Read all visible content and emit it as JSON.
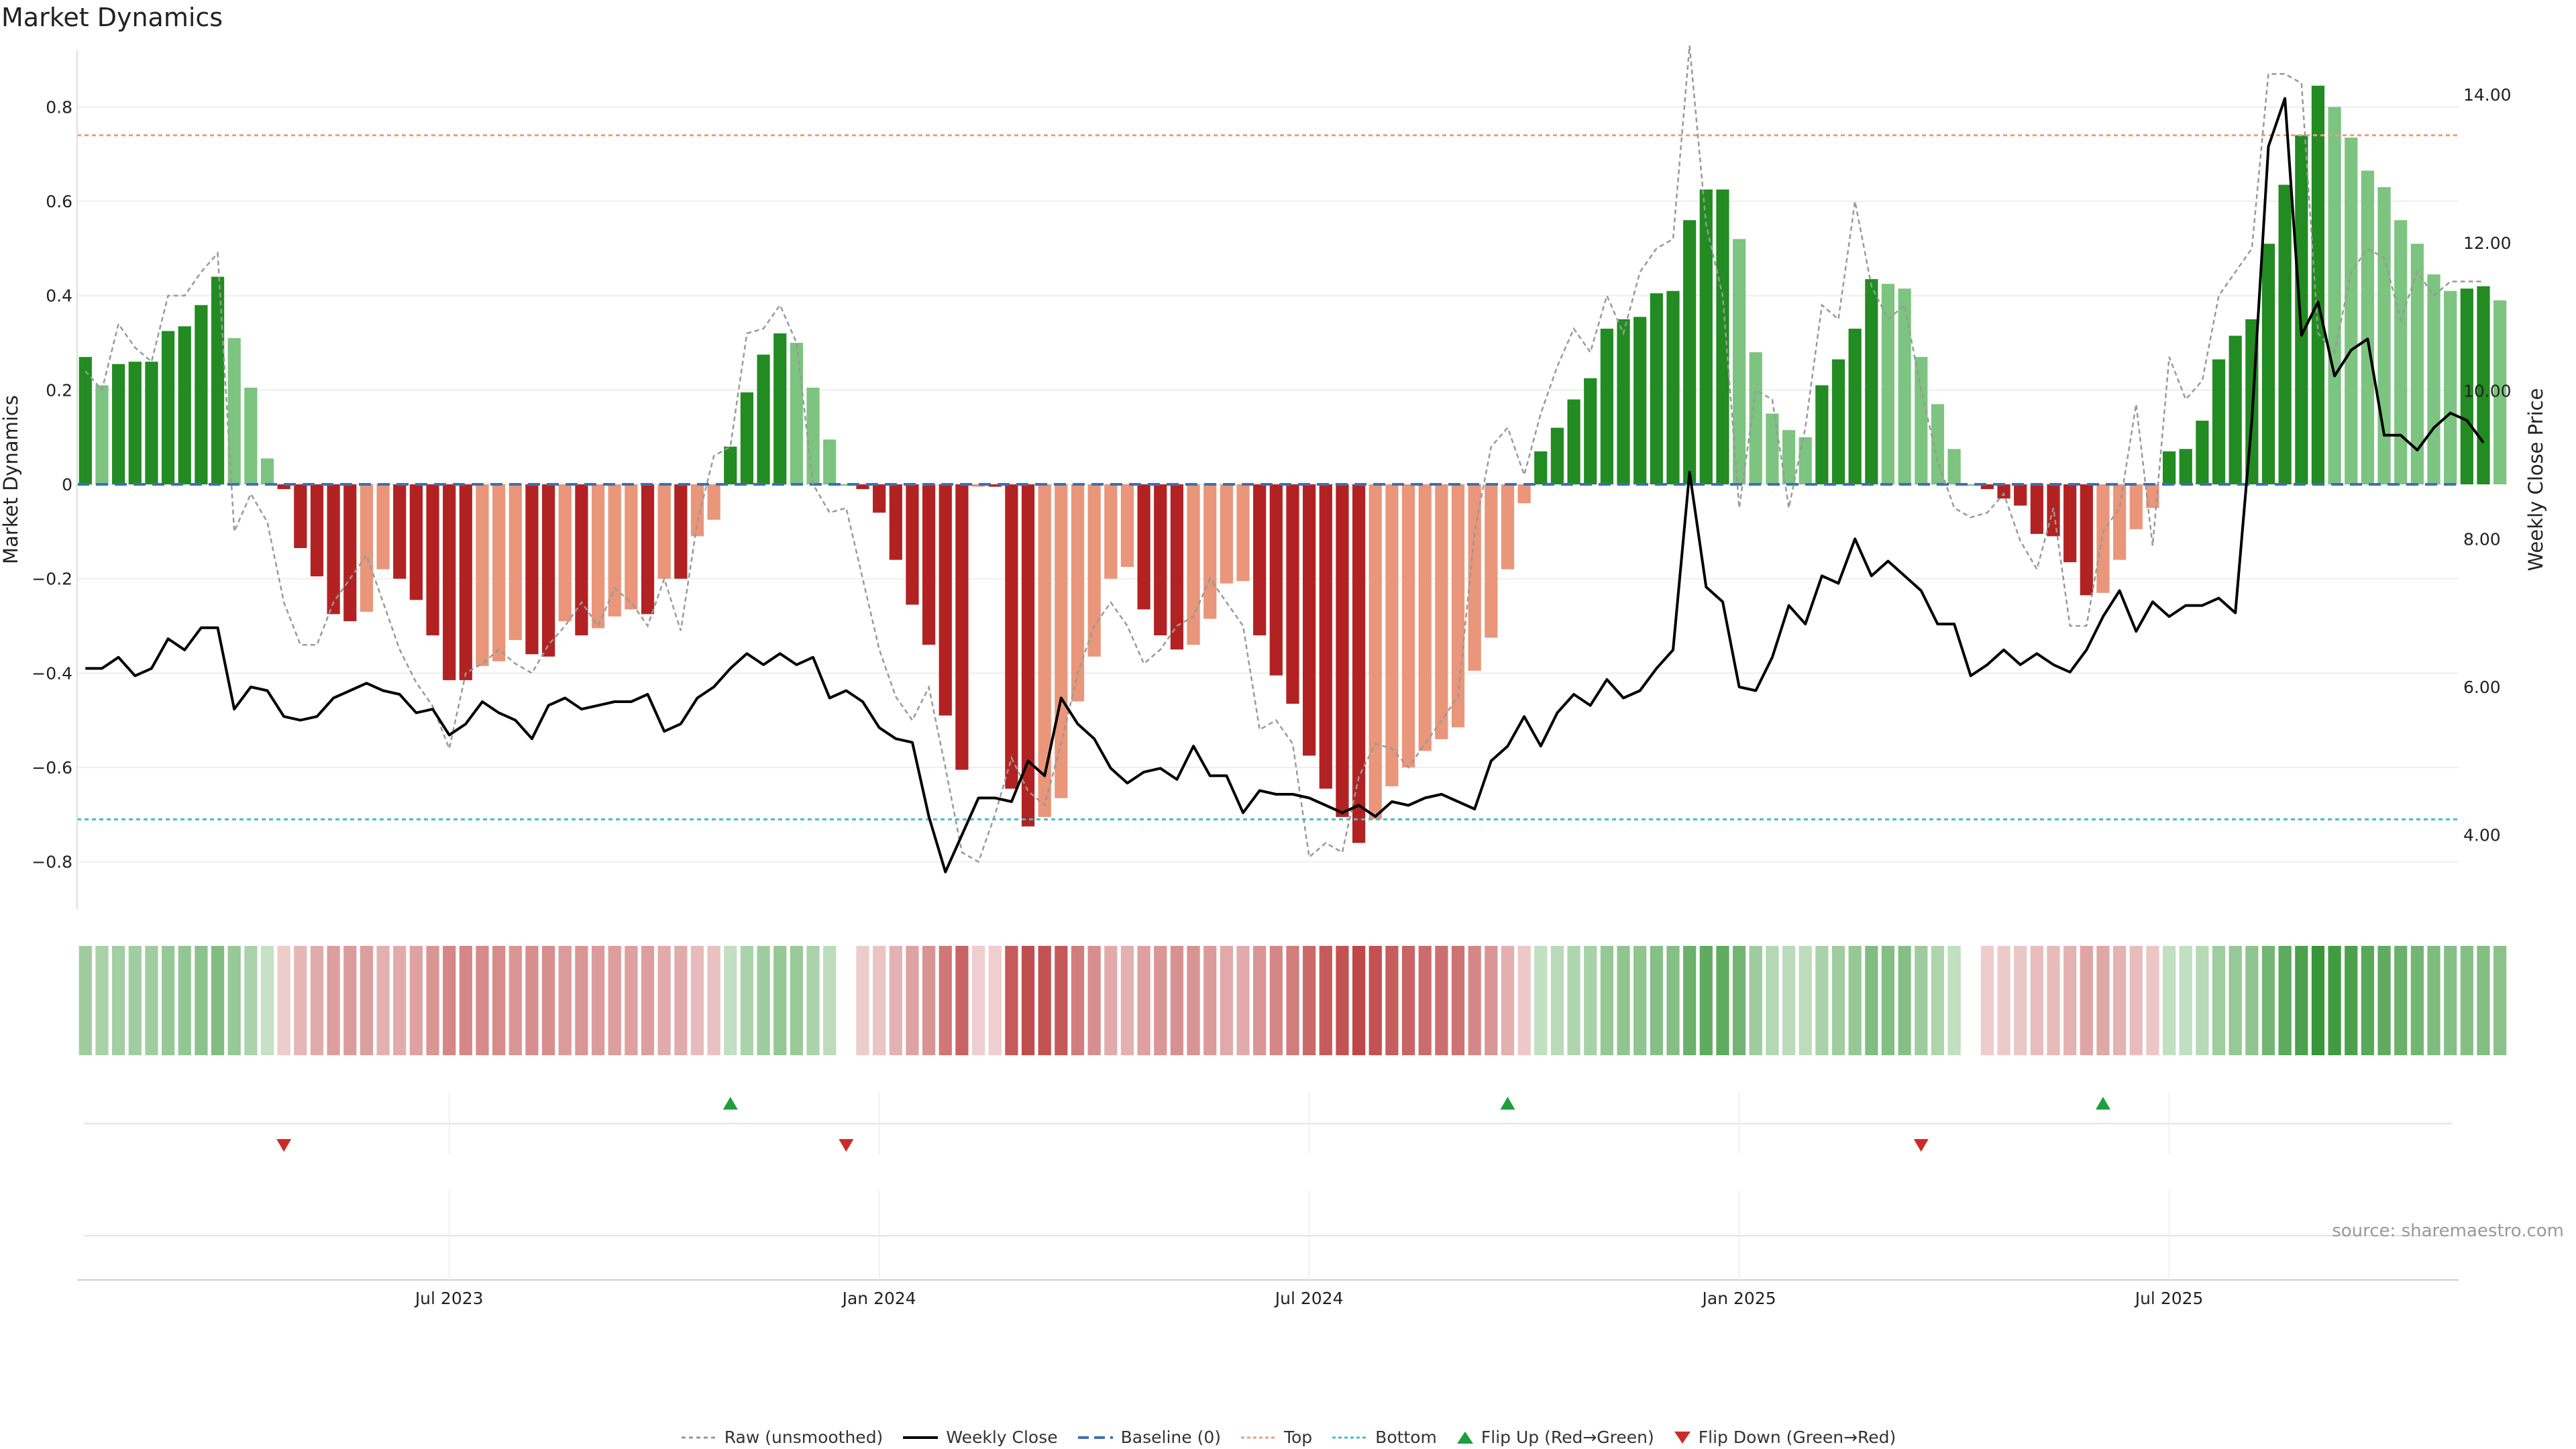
{
  "title": "Market Dynamics",
  "source": "source: sharemaestro.com",
  "colors": {
    "strong_green": "#228b22",
    "weak_green": "#7cc47f",
    "strong_red": "#b22222",
    "weak_red": "#e9967a",
    "price": "#000000",
    "raw": "#999999",
    "baseline": "#3d6fb4",
    "top": "#e7a07f",
    "bottom": "#3fbfc9",
    "flip_up": "#1e9e3e",
    "flip_down": "#cc2a2a"
  },
  "chart_data": {
    "type": "bar",
    "title": "Market Dynamics",
    "ylabel": "Market Dynamics",
    "y2label": "Weekly Close Price",
    "ylim": [
      -0.9,
      0.92
    ],
    "y2lim": [
      3.0,
      14.6
    ],
    "yticks": [
      -0.8,
      -0.6,
      -0.4,
      -0.2,
      0,
      0.2,
      0.4,
      0.6,
      0.8
    ],
    "yticklabels": [
      "−0.8",
      "−0.6",
      "−0.4",
      "−0.2",
      "0",
      "0.2",
      "0.4",
      "0.6",
      "0.8"
    ],
    "y2ticks": [
      4,
      6,
      8,
      10,
      12,
      14
    ],
    "y2ticklabels": [
      "4.00",
      "6.00",
      "8.00",
      "10.00",
      "12.00",
      "14.00"
    ],
    "xticks": [
      {
        "week": 22,
        "label": "Jul 2023"
      },
      {
        "week": 48,
        "label": "Jan 2024"
      },
      {
        "week": 74,
        "label": "Jul 2024"
      },
      {
        "week": 100,
        "label": "Jan 2025"
      },
      {
        "week": 126,
        "label": "Jul 2025"
      }
    ],
    "top_level": 0.74,
    "bottom_level": -0.71,
    "baseline": 0,
    "weeks": 144,
    "values": [
      0.27,
      0.21,
      0.255,
      0.26,
      0.26,
      0.325,
      0.335,
      0.38,
      0.44,
      0.31,
      0.205,
      0.055,
      -0.01,
      -0.135,
      -0.195,
      -0.275,
      -0.29,
      -0.27,
      -0.18,
      -0.2,
      -0.245,
      -0.32,
      -0.415,
      -0.415,
      -0.385,
      -0.375,
      -0.33,
      -0.36,
      -0.365,
      -0.29,
      -0.32,
      -0.305,
      -0.28,
      -0.265,
      -0.275,
      -0.2,
      -0.2,
      -0.11,
      -0.075,
      0.08,
      0.195,
      0.275,
      0.32,
      0.3,
      0.205,
      0.095,
      0,
      -0.01,
      -0.06,
      -0.16,
      -0.255,
      -0.34,
      -0.49,
      -0.605,
      -0.005,
      -0.005,
      -0.645,
      -0.725,
      -0.705,
      -0.665,
      -0.46,
      -0.365,
      -0.2,
      -0.175,
      -0.265,
      -0.32,
      -0.35,
      -0.34,
      -0.285,
      -0.21,
      -0.205,
      -0.32,
      -0.405,
      -0.465,
      -0.575,
      -0.645,
      -0.705,
      -0.76,
      -0.71,
      -0.64,
      -0.6,
      -0.565,
      -0.54,
      -0.515,
      -0.395,
      -0.325,
      -0.18,
      -0.04,
      0.07,
      0.12,
      0.18,
      0.225,
      0.33,
      0.35,
      0.355,
      0.405,
      0.41,
      0.56,
      0.625,
      0.625,
      0.52,
      0.28,
      0.15,
      0.115,
      0.1,
      0.21,
      0.265,
      0.33,
      0.435,
      0.425,
      0.415,
      0.27,
      0.17,
      0.075,
      0,
      -0.01,
      -0.03,
      -0.045,
      -0.105,
      -0.11,
      -0.165,
      -0.235,
      -0.23,
      -0.16,
      -0.095,
      -0.05,
      0.07,
      0.075,
      0.135,
      0.265,
      0.315,
      0.35,
      0.51,
      0.635,
      0.74,
      0.845,
      0.8,
      0.735,
      0.665,
      0.63,
      0.56,
      0.51,
      0.445,
      0.41,
      0.415,
      0.42,
      0.39
    ],
    "raw": [
      0.24,
      0.2,
      0.34,
      0.29,
      0.26,
      0.4,
      0.4,
      0.45,
      0.49,
      -0.1,
      -0.02,
      -0.08,
      -0.25,
      -0.34,
      -0.34,
      -0.25,
      -0.2,
      -0.15,
      -0.25,
      -0.35,
      -0.42,
      -0.47,
      -0.56,
      -0.4,
      -0.38,
      -0.35,
      -0.38,
      -0.4,
      -0.34,
      -0.3,
      -0.25,
      -0.3,
      -0.22,
      -0.25,
      -0.3,
      -0.2,
      -0.31,
      -0.08,
      0.06,
      0.08,
      0.32,
      0.33,
      0.38,
      0.3,
      0.0,
      -0.06,
      -0.05,
      -0.2,
      -0.35,
      -0.45,
      -0.5,
      -0.43,
      -0.6,
      -0.78,
      -0.8,
      -0.7,
      -0.58,
      -0.65,
      -0.68,
      -0.55,
      -0.4,
      -0.3,
      -0.25,
      -0.3,
      -0.38,
      -0.35,
      -0.3,
      -0.28,
      -0.2,
      -0.25,
      -0.3,
      -0.52,
      -0.5,
      -0.55,
      -0.79,
      -0.76,
      -0.78,
      -0.62,
      -0.55,
      -0.56,
      -0.6,
      -0.55,
      -0.5,
      -0.45,
      -0.1,
      0.08,
      0.12,
      0.02,
      0.15,
      0.25,
      0.33,
      0.28,
      0.4,
      0.32,
      0.45,
      0.5,
      0.52,
      0.93,
      0.55,
      0.4,
      -0.05,
      0.2,
      0.18,
      -0.05,
      0.12,
      0.38,
      0.35,
      0.6,
      0.42,
      0.35,
      0.38,
      0.2,
      0.05,
      -0.05,
      -0.07,
      -0.06,
      -0.02,
      -0.12,
      -0.18,
      -0.05,
      -0.3,
      -0.3,
      -0.1,
      -0.05,
      0.17,
      -0.13,
      0.27,
      0.18,
      0.22,
      0.4,
      0.45,
      0.5,
      0.87,
      0.87,
      0.85,
      0.32,
      0.28,
      0.45,
      0.5,
      0.48,
      0.35,
      0.45,
      0.4,
      0.43,
      0.43,
      0.43
    ],
    "price": [
      6.25,
      6.25,
      6.4,
      6.15,
      6.25,
      6.65,
      6.5,
      6.8,
      6.8,
      5.7,
      6.0,
      5.95,
      5.6,
      5.55,
      5.6,
      5.85,
      5.95,
      6.05,
      5.95,
      5.9,
      5.65,
      5.7,
      5.35,
      5.5,
      5.8,
      5.65,
      5.55,
      5.3,
      5.75,
      5.85,
      5.7,
      5.75,
      5.8,
      5.8,
      5.9,
      5.4,
      5.5,
      5.85,
      6.0,
      6.25,
      6.45,
      6.3,
      6.45,
      6.3,
      6.4,
      5.85,
      5.95,
      5.8,
      5.45,
      5.3,
      5.25,
      4.25,
      3.5,
      4.0,
      4.5,
      4.5,
      4.45,
      5.0,
      4.8,
      5.85,
      5.5,
      5.3,
      4.9,
      4.7,
      4.85,
      4.9,
      4.75,
      5.2,
      4.8,
      4.8,
      4.3,
      4.6,
      4.55,
      4.55,
      4.5,
      4.4,
      4.3,
      4.4,
      4.25,
      4.45,
      4.4,
      4.5,
      4.55,
      4.45,
      4.35,
      5.0,
      5.2,
      5.6,
      5.2,
      5.65,
      5.9,
      5.75,
      6.1,
      5.85,
      5.95,
      6.25,
      6.5,
      8.9,
      7.35,
      7.15,
      6.0,
      5.95,
      6.4,
      7.1,
      6.85,
      7.5,
      7.4,
      8.0,
      7.5,
      7.7,
      7.5,
      7.3,
      6.85,
      6.85,
      6.15,
      6.3,
      6.5,
      6.3,
      6.45,
      6.3,
      6.2,
      6.5,
      6.95,
      7.3,
      6.75,
      7.15,
      6.95,
      7.1,
      7.1,
      7.2,
      7.0,
      9.6,
      13.3,
      13.95,
      10.75,
      11.2,
      10.2,
      10.55,
      10.7,
      9.4,
      9.4,
      9.2,
      9.5,
      9.7,
      9.6,
      9.3
    ],
    "flip_up_weeks": [
      39,
      86,
      122
    ],
    "flip_down_weeks": [
      12,
      46,
      111
    ]
  },
  "legend": [
    {
      "key": "raw",
      "label": "Raw (unsmoothed)"
    },
    {
      "key": "price",
      "label": "Weekly Close"
    },
    {
      "key": "baseline",
      "label": "Baseline (0)"
    },
    {
      "key": "top",
      "label": "Top"
    },
    {
      "key": "bottom",
      "label": "Bottom"
    },
    {
      "key": "flip_up",
      "label": "Flip Up (Red→Green)"
    },
    {
      "key": "flip_down",
      "label": "Flip Down (Green→Red)"
    }
  ]
}
